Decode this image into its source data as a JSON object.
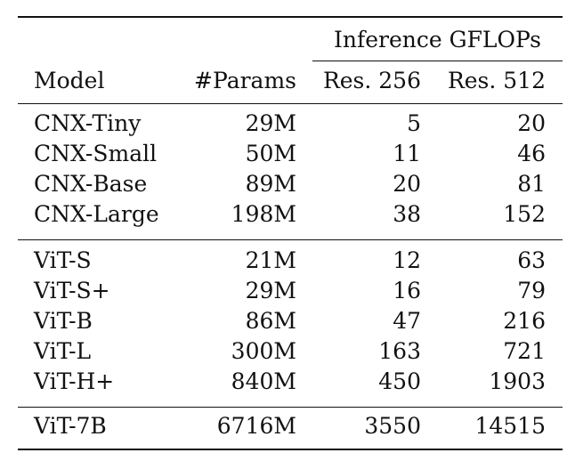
{
  "table": {
    "group_header": "Inference GFLOPs",
    "columns": [
      "Model",
      "#Params",
      "Res. 256",
      "Res. 512"
    ],
    "groups": [
      {
        "rows": [
          [
            "CNX-Tiny",
            "29M",
            "5",
            "20"
          ],
          [
            "CNX-Small",
            "50M",
            "11",
            "46"
          ],
          [
            "CNX-Base",
            "89M",
            "20",
            "81"
          ],
          [
            "CNX-Large",
            "198M",
            "38",
            "152"
          ]
        ]
      },
      {
        "rows": [
          [
            "ViT-S",
            "21M",
            "12",
            "63"
          ],
          [
            "ViT-S+",
            "29M",
            "16",
            "79"
          ],
          [
            "ViT-B",
            "86M",
            "47",
            "216"
          ],
          [
            "ViT-L",
            "300M",
            "163",
            "721"
          ],
          [
            "ViT-H+",
            "840M",
            "450",
            "1903"
          ]
        ]
      },
      {
        "rows": [
          [
            "ViT-7B",
            "6716M",
            "3550",
            "14515"
          ]
        ]
      }
    ]
  }
}
